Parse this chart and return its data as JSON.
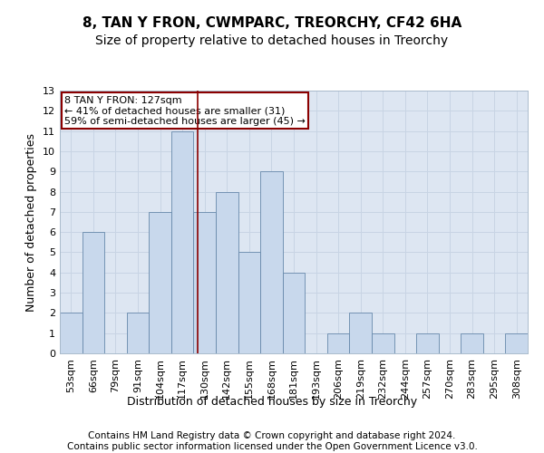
{
  "title1": "8, TAN Y FRON, CWMPARC, TREORCHY, CF42 6HA",
  "title2": "Size of property relative to detached houses in Treorchy",
  "xlabel": "Distribution of detached houses by size in Treorchy",
  "ylabel": "Number of detached properties",
  "annotation_lines": [
    "8 TAN Y FRON: 127sqm",
    "← 41% of detached houses are smaller (31)",
    "59% of semi-detached houses are larger (45) →"
  ],
  "footer1": "Contains HM Land Registry data © Crown copyright and database right 2024.",
  "footer2": "Contains public sector information licensed under the Open Government Licence v3.0.",
  "bin_labels": [
    "53sqm",
    "66sqm",
    "79sqm",
    "91sqm",
    "104sqm",
    "117sqm",
    "130sqm",
    "142sqm",
    "155sqm",
    "168sqm",
    "181sqm",
    "193sqm",
    "206sqm",
    "219sqm",
    "232sqm",
    "244sqm",
    "257sqm",
    "270sqm",
    "283sqm",
    "295sqm",
    "308sqm"
  ],
  "bar_values": [
    2,
    6,
    0,
    2,
    7,
    11,
    7,
    8,
    5,
    9,
    4,
    0,
    1,
    2,
    1,
    0,
    1,
    0,
    1,
    0,
    1
  ],
  "bar_color": "#c8d8ec",
  "bar_edge_color": "#6688aa",
  "vline_x": 5.7,
  "vline_color": "#8b0000",
  "annotation_box_color": "#8b0000",
  "ylim": [
    0,
    13
  ],
  "yticks": [
    0,
    1,
    2,
    3,
    4,
    5,
    6,
    7,
    8,
    9,
    10,
    11,
    12,
    13
  ],
  "grid_color": "#c8d4e4",
  "bg_color": "#dde6f2",
  "title1_fontsize": 11,
  "title2_fontsize": 10,
  "xlabel_fontsize": 9,
  "ylabel_fontsize": 9,
  "tick_fontsize": 8,
  "annotation_fontsize": 8,
  "footer_fontsize": 7.5
}
